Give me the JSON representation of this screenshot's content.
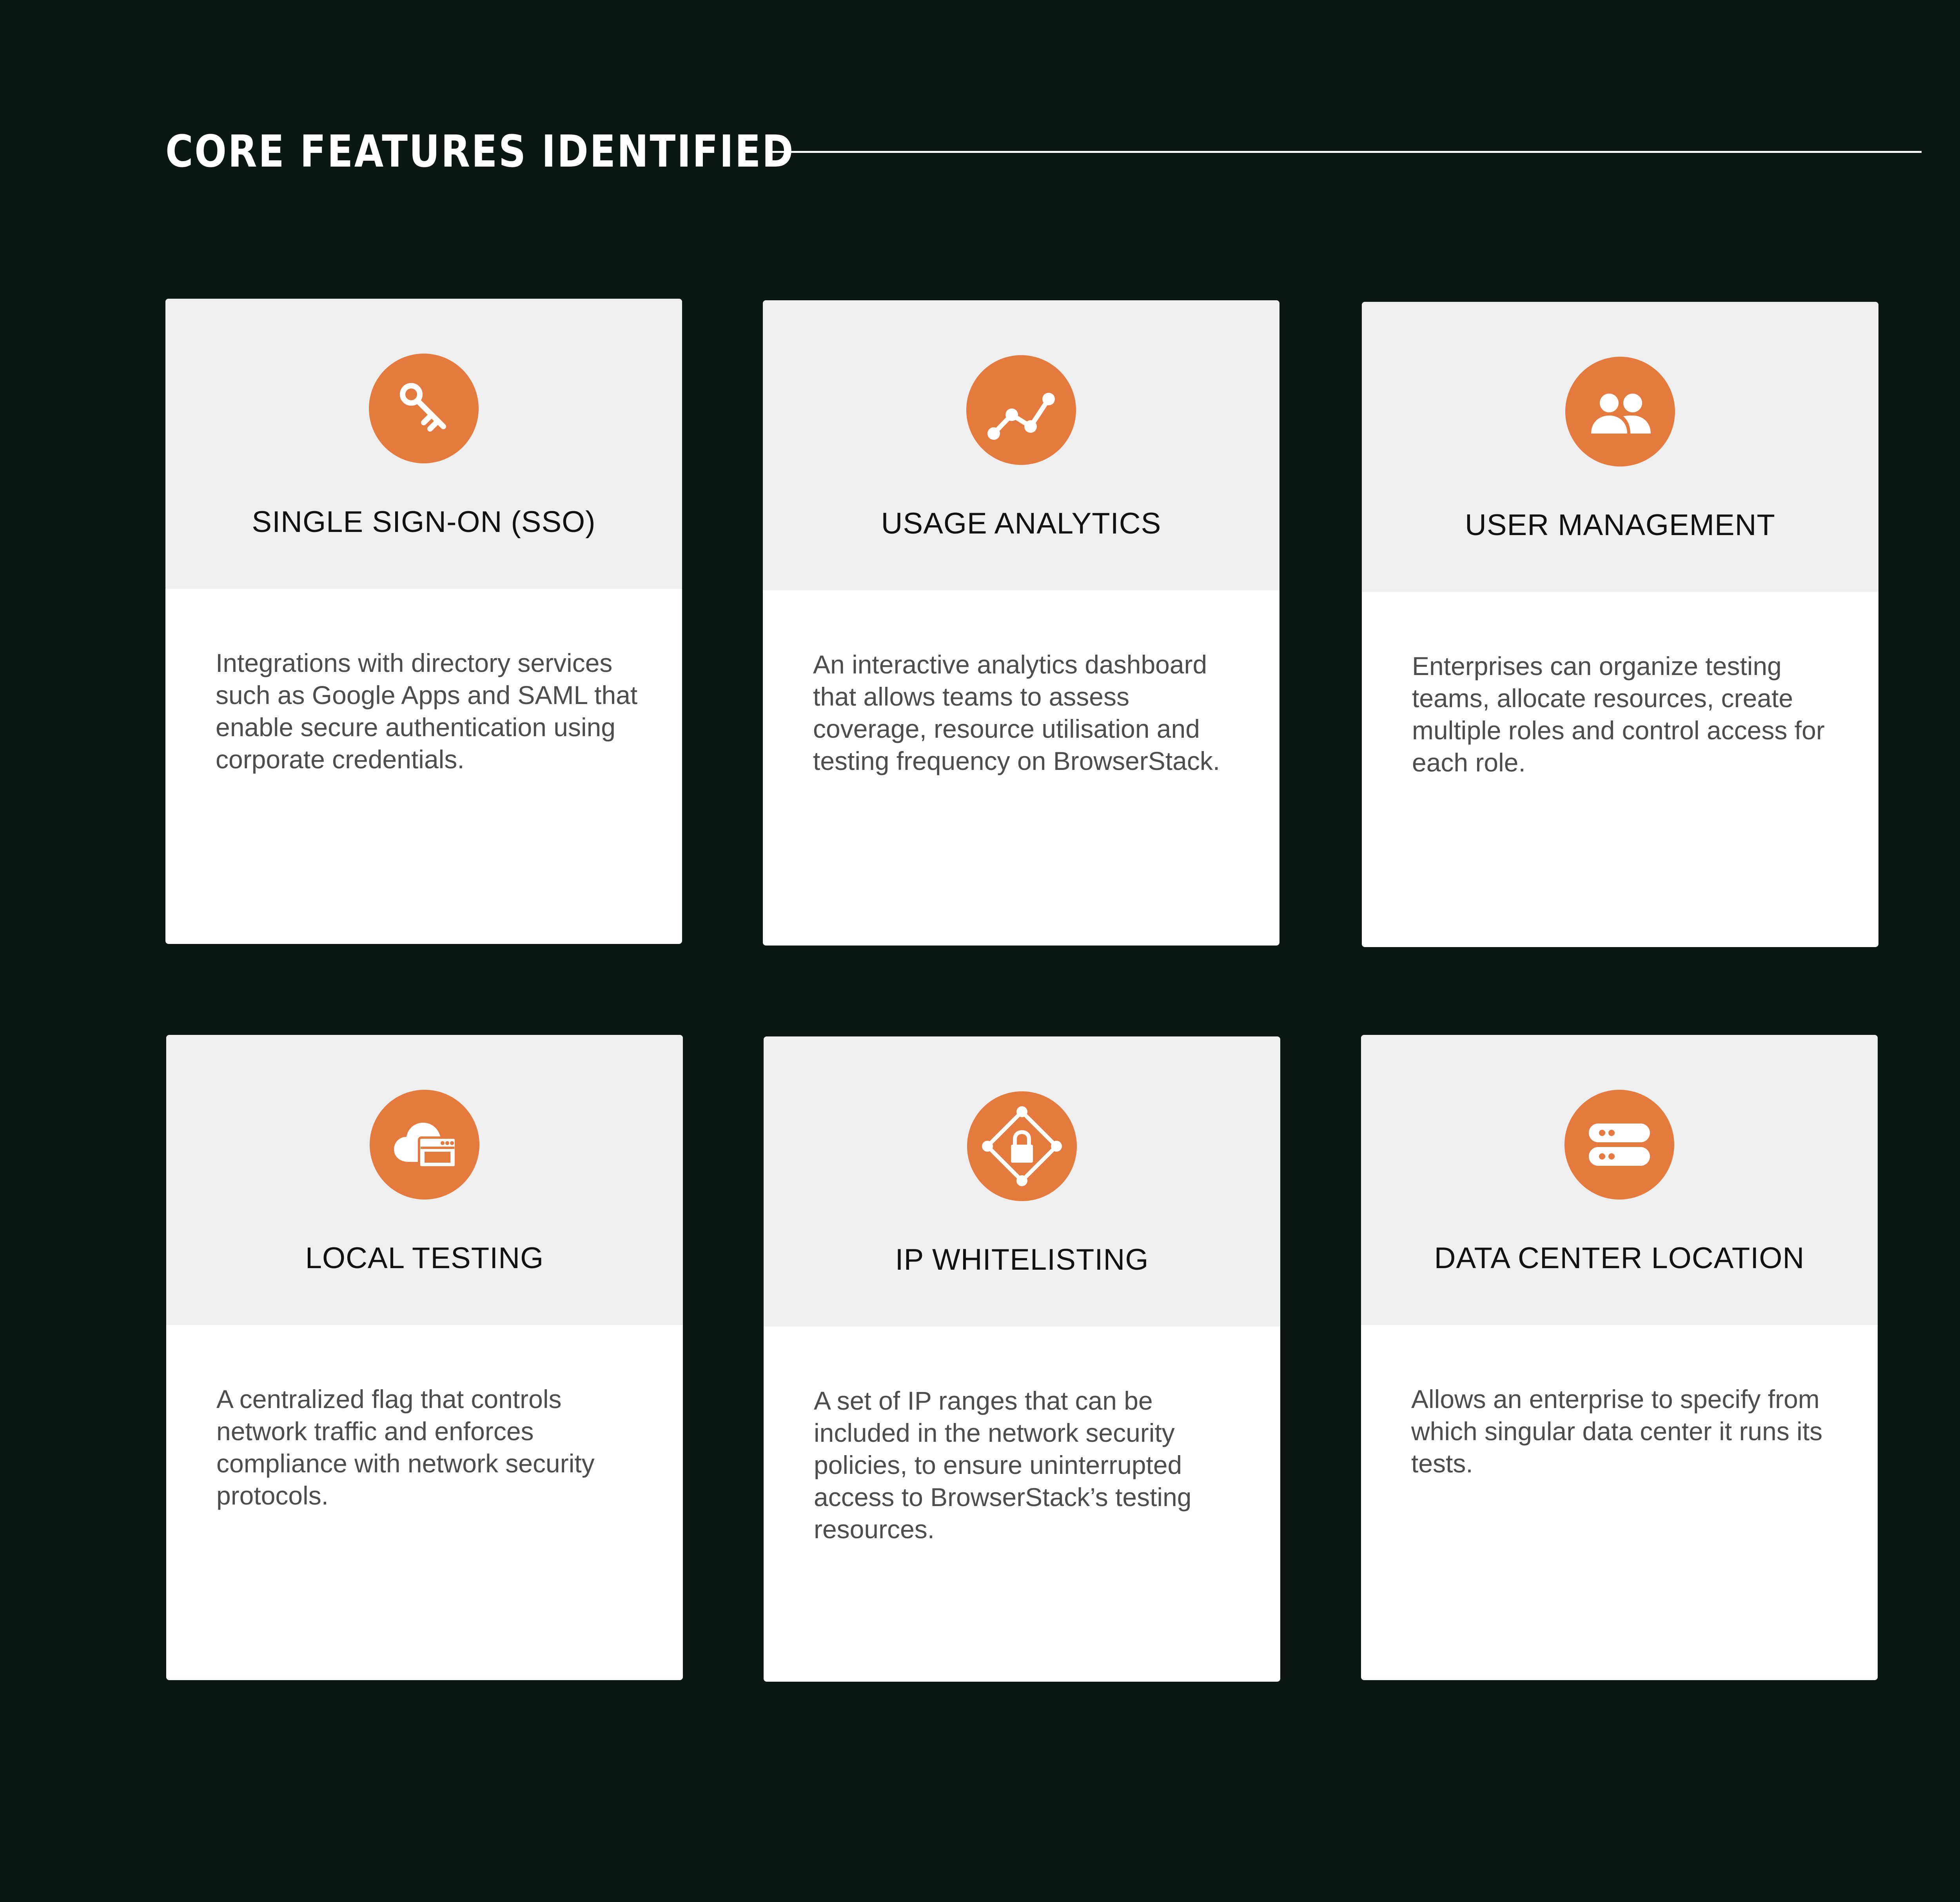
{
  "page": {
    "title": "CORE FEATURES IDENTIFIED"
  },
  "colors": {
    "background": "#0b1714",
    "card_header": "#efefef",
    "card_body": "#ffffff",
    "icon_accent": "#e57a3f",
    "title_text": "#111111",
    "body_text": "#4d4d4d"
  },
  "features": [
    {
      "icon": "key-icon",
      "title": "SINGLE SIGN-ON (SSO)",
      "description": "Integrations with directory services such as Google Apps and SAML that enable secure authentication using corporate credentials."
    },
    {
      "icon": "analytics-line-icon",
      "title": "USAGE ANALYTICS",
      "description": "An interactive analytics dashboard that allows teams to assess coverage, resource utilisation and testing frequency on BrowserStack."
    },
    {
      "icon": "users-icon",
      "title": "USER MANAGEMENT",
      "description": "Enterprises can organize testing teams, allocate resources, create multiple roles and control access for each role."
    },
    {
      "icon": "cloud-browser-icon",
      "title": "LOCAL TESTING",
      "description": "A centralized flag that controls network traffic and enforces compliance with network security protocols."
    },
    {
      "icon": "network-lock-icon",
      "title": "IP WHITELISTING",
      "description": "A set of IP ranges that can be included in the network security policies, to ensure uninterrupted access to BrowserStack’s testing resources."
    },
    {
      "icon": "server-icon",
      "title": "DATA CENTER LOCATION",
      "description": "Allows an enterprise to specify from which singular data center it runs its tests."
    }
  ]
}
